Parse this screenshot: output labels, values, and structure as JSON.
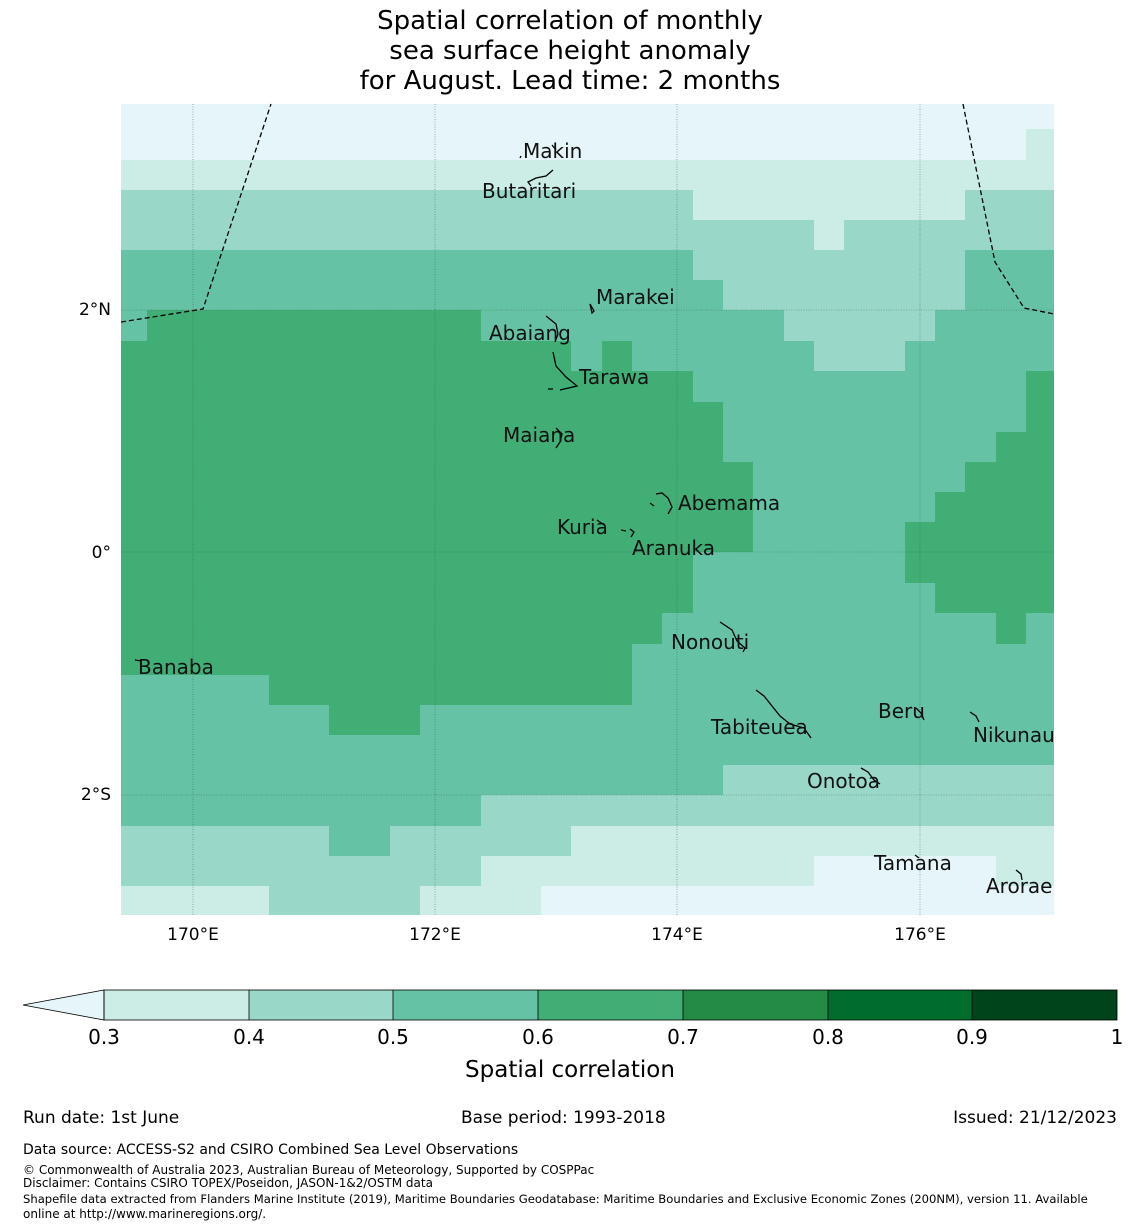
{
  "title": {
    "line1": "Spatial correlation of monthly",
    "line2": "sea surface height anomaly",
    "line3": "for August. Lead time: 2 months"
  },
  "map": {
    "lon_labels": [
      "170°E",
      "172°E",
      "174°E",
      "176°E"
    ],
    "lat_labels": [
      "2°N",
      "0°",
      "2°S"
    ],
    "islands": [
      "Makin",
      "Butaritari",
      "Marakei",
      "Abaiang",
      "Tarawa",
      "Maiana",
      "Abemama",
      "Kuria",
      "Aranuka",
      "Nonouti",
      "Banaba",
      "Beru",
      "Tabiteuea",
      "Nikunau",
      "Onotoa",
      "Tamana",
      "Arorae"
    ]
  },
  "colorbar": {
    "ticks": [
      "0.3",
      "0.4",
      "0.5",
      "0.6",
      "0.7",
      "0.8",
      "0.9",
      "1"
    ],
    "label": "Spatial correlation",
    "colors": [
      "#e5f5f9",
      "#ccece6",
      "#99d8c9",
      "#66c2a4",
      "#41ae76",
      "#238b45",
      "#006d2c",
      "#00441b"
    ]
  },
  "footer": {
    "run_date": "Run date: 1st June",
    "base_period": "Base period: 1993-2018",
    "issued": "Issued: 21/12/2023",
    "data_source": "Data source: ACCESS-S2 and CSIRO Combined Sea Level Observations",
    "copyright": "© Commonwealth of Australia 2023, Australian Bureau of Meteorology, Supported by COSPPac",
    "disclaimer": "Disclaimer: Contains CSIRO TOPEX/Poseidon, JASON-1&2/OSTM data",
    "shapefile_line1": "Shapefile data extracted from Flanders Marine Institute (2019), Maritime Boundaries Geodatabase: Maritime Boundaries and Exclusive Economic Zones (200NM), version 11. Available",
    "shapefile_line2": "online at http://www.marineregions.org/."
  }
}
